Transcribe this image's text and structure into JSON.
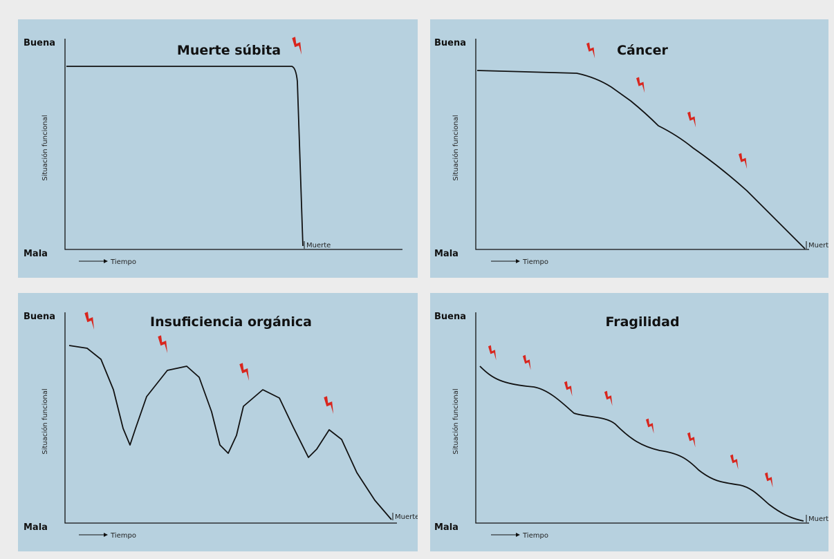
{
  "panels": [
    {
      "title": "Muerte súbita",
      "good_label": "Buena",
      "bad_label": "Mala",
      "y_axis_label": "Situación funcional",
      "x_axis_label": "Tiempo",
      "end_label": "Muerte",
      "trajectory": "abrupt-drop",
      "event_marker_count": 1
    },
    {
      "title": "Cáncer",
      "good_label": "Buena",
      "bad_label": "Mala",
      "y_axis_label": "Situación funcional",
      "x_axis_label": "Tiempo",
      "end_label": "Muerte",
      "trajectory": "steady-decline",
      "event_marker_count": 4
    },
    {
      "title": "Insuficiencia orgánica",
      "good_label": "Buena",
      "bad_label": "Mala",
      "y_axis_label": "Situación funcional",
      "x_axis_label": "Tiempo",
      "end_label": "Muerte",
      "trajectory": "recurrent-exacerbations",
      "event_marker_count": 4
    },
    {
      "title": "Fragilidad",
      "good_label": "Buena",
      "bad_label": "Mala",
      "y_axis_label": "Situación funcional",
      "x_axis_label": "Tiempo",
      "end_label": "Muerte",
      "trajectory": "gradual-stepwise-decline",
      "event_marker_count": 8
    }
  ],
  "colors": {
    "panel_background": "#b7d1df",
    "page_background": "#ececec",
    "event_marker": "#d8261e",
    "curve": "#111111"
  },
  "icons": {
    "event_marker": "lightning-bolt-icon",
    "x_axis_arrow": "arrow-right-icon"
  }
}
